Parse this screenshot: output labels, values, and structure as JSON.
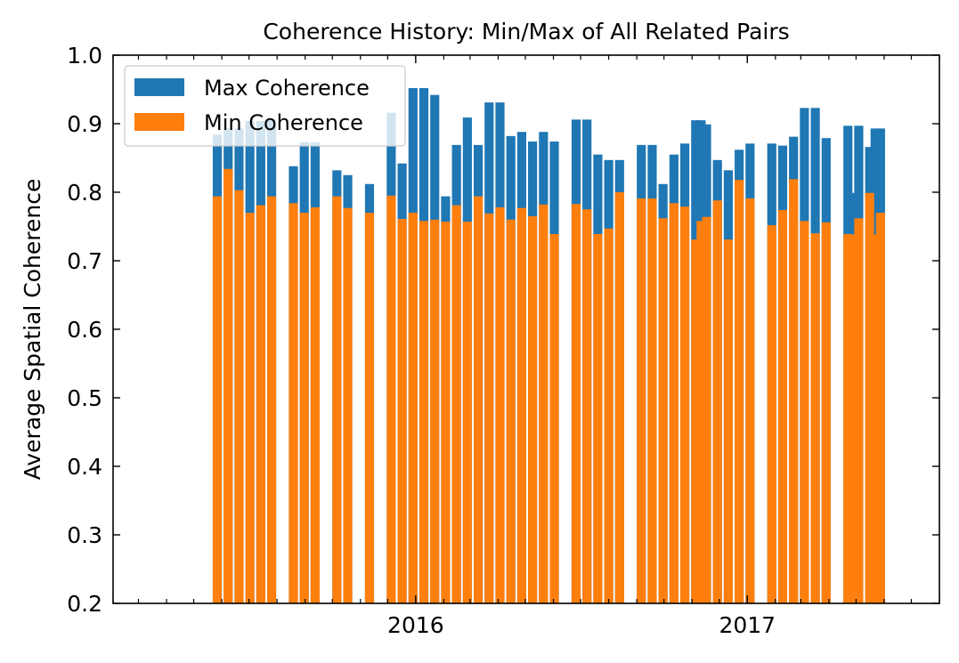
{
  "chart_data": {
    "type": "bar",
    "title": "Coherence History: Min/Max of All Related Pairs",
    "xlabel": "",
    "ylabel": "Average Spatial Coherence",
    "ylim": [
      0.2,
      1.0
    ],
    "xlim": [
      "2015-02-01",
      "2017-08-01"
    ],
    "yticks": [
      "0.2",
      "0.3",
      "0.4",
      "0.5",
      "0.6",
      "0.7",
      "0.8",
      "0.9",
      "1.0"
    ],
    "xticks": [
      {
        "date": "2016-01-01",
        "label": "2016"
      },
      {
        "date": "2017-01-01",
        "label": "2017"
      }
    ],
    "minor_xticks": "monthly",
    "grid": false,
    "legend": "upper left",
    "colors": {
      "max": "#1f77b4",
      "min": "#ff7f0e"
    },
    "series": [
      {
        "name": "Max Coherence",
        "values": [
          0.884,
          0.893,
          0.893,
          0.904,
          0.904,
          0.906,
          0.838,
          0.873,
          0.873,
          0.832,
          0.825,
          0.812,
          0.916,
          0.842,
          0.952,
          0.952,
          0.942,
          0.794,
          0.869,
          0.909,
          0.869,
          0.931,
          0.931,
          0.882,
          0.888,
          0.874,
          0.888,
          0.874,
          0.906,
          0.906,
          0.855,
          0.847,
          0.847,
          0.869,
          0.869,
          0.812,
          0.855,
          0.871,
          0.905,
          0.905,
          0.899,
          0.847,
          0.832,
          0.862,
          0.871,
          0.871,
          0.868,
          0.881,
          0.923,
          0.923,
          0.879,
          0.897,
          0.799,
          0.897,
          0.866,
          0.893,
          0.893
        ]
      },
      {
        "name": "Min Coherence",
        "values": [
          0.794,
          0.834,
          0.803,
          0.77,
          0.781,
          0.794,
          0.784,
          0.77,
          0.778,
          0.794,
          0.777,
          0.77,
          0.795,
          0.761,
          0.77,
          0.758,
          0.76,
          0.757,
          0.781,
          0.757,
          0.794,
          0.769,
          0.778,
          0.76,
          0.777,
          0.765,
          0.782,
          0.739,
          0.783,
          0.775,
          0.739,
          0.747,
          0.8,
          0.791,
          0.791,
          0.762,
          0.784,
          0.779,
          0.731,
          0.758,
          0.764,
          0.788,
          0.731,
          0.818,
          0.791,
          0.752,
          0.774,
          0.819,
          0.758,
          0.74,
          0.756,
          0.739,
          0.738,
          0.762,
          0.799,
          0.738,
          0.77
        ]
      }
    ],
    "x": [
      "2015-05-27",
      "2015-06-08",
      "2015-06-20",
      "2015-07-02",
      "2015-07-14",
      "2015-07-26",
      "2015-08-19",
      "2015-08-31",
      "2015-09-12",
      "2015-10-06",
      "2015-10-18",
      "2015-11-11",
      "2015-12-05",
      "2015-12-17",
      "2015-12-29",
      "2016-01-10",
      "2016-01-22",
      "2016-02-03",
      "2016-02-15",
      "2016-02-27",
      "2016-03-10",
      "2016-03-22",
      "2016-04-03",
      "2016-04-15",
      "2016-04-27",
      "2016-05-09",
      "2016-05-21",
      "2016-06-02",
      "2016-06-26",
      "2016-07-08",
      "2016-07-20",
      "2016-08-01",
      "2016-08-13",
      "2016-09-06",
      "2016-09-18",
      "2016-09-30",
      "2016-10-12",
      "2016-10-24",
      "2016-11-05",
      "2016-11-11",
      "2016-11-17",
      "2016-11-29",
      "2016-12-11",
      "2016-12-23",
      "2017-01-04",
      "2017-01-28",
      "2017-02-09",
      "2017-02-21",
      "2017-03-05",
      "2017-03-17",
      "2017-03-29",
      "2017-04-22",
      "2017-04-28",
      "2017-05-04",
      "2017-05-16",
      "2017-05-22",
      "2017-05-28"
    ]
  }
}
